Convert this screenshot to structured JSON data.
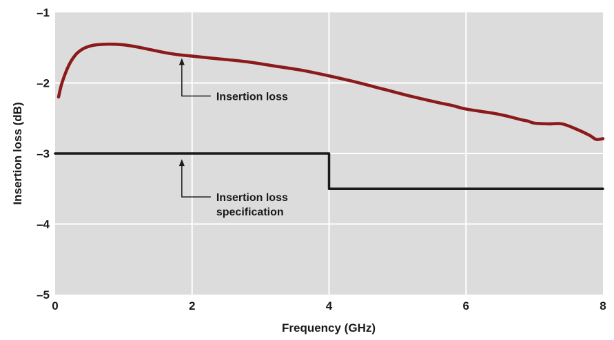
{
  "chart_data": {
    "type": "line",
    "xlabel": "Frequency (GHz)",
    "ylabel": "Insertion loss (dB)",
    "xlim": [
      0,
      8
    ],
    "ylim": [
      -5,
      -1
    ],
    "x_ticks": [
      "0",
      "2",
      "4",
      "6",
      "8"
    ],
    "y_ticks": [
      "–1",
      "–2",
      "–3",
      "–4",
      "–5"
    ],
    "grid": true,
    "background": "#dcdcdc",
    "series": [
      {
        "name": "Insertion loss",
        "color": "#8b1a1a",
        "x": [
          0.05,
          0.1,
          0.2,
          0.3,
          0.4,
          0.5,
          0.6,
          0.8,
          1.0,
          1.2,
          1.4,
          1.6,
          1.8,
          2.0,
          2.4,
          2.8,
          3.2,
          3.6,
          4.0,
          4.4,
          4.8,
          5.2,
          5.6,
          5.8,
          6.0,
          6.4,
          6.6,
          6.8,
          6.9,
          7.0,
          7.2,
          7.4,
          7.6,
          7.8,
          7.9,
          8.0
        ],
        "y": [
          -2.2,
          -2.0,
          -1.75,
          -1.6,
          -1.52,
          -1.48,
          -1.46,
          -1.45,
          -1.46,
          -1.49,
          -1.53,
          -1.57,
          -1.6,
          -1.62,
          -1.66,
          -1.7,
          -1.76,
          -1.82,
          -1.9,
          -1.99,
          -2.09,
          -2.19,
          -2.28,
          -2.32,
          -2.37,
          -2.43,
          -2.47,
          -2.52,
          -2.54,
          -2.57,
          -2.58,
          -2.58,
          -2.65,
          -2.74,
          -2.8,
          -2.79
        ]
      },
      {
        "name": "Insertion loss specification",
        "color": "#1a1a1a",
        "x": [
          0,
          4,
          4,
          8
        ],
        "y": [
          -3.0,
          -3.0,
          -3.5,
          -3.5
        ]
      }
    ],
    "annotations": [
      {
        "lines": [
          "Insertion loss"
        ],
        "x": 1.85,
        "y": -1.6
      },
      {
        "lines": [
          "Insertion loss",
          "specification"
        ],
        "x": 1.85,
        "y": -3.03
      }
    ]
  }
}
